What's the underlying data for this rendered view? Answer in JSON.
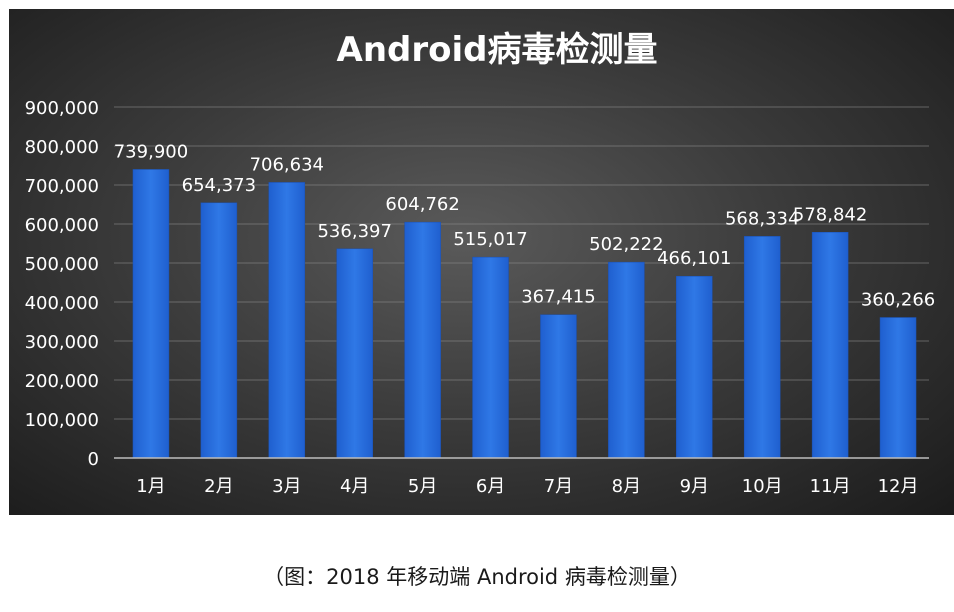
{
  "chart_data": {
    "type": "bar",
    "title": "Android病毒检测量",
    "categories": [
      "1月",
      "2月",
      "3月",
      "4月",
      "5月",
      "6月",
      "7月",
      "8月",
      "9月",
      "10月",
      "11月",
      "12月"
    ],
    "values": [
      739900,
      654373,
      706634,
      536397,
      604762,
      515017,
      367415,
      502222,
      466101,
      568334,
      578842,
      360266
    ],
    "data_labels": [
      "739,900",
      "654,373",
      "706,634",
      "536,397",
      "604,762",
      "515,017",
      "367,415",
      "502,222",
      "466,101",
      "568,334",
      "578,842",
      "360,266"
    ],
    "yticks": [
      "0",
      "100,000",
      "200,000",
      "300,000",
      "400,000",
      "500,000",
      "600,000",
      "700,000",
      "800,000",
      "900,000"
    ],
    "ylim": [
      0,
      900000
    ],
    "grid": true,
    "colors": {
      "bar": "#2a6fde",
      "bar_edge": "#1c52b3",
      "text": "#ffffff",
      "grid": "#8a8a8a"
    }
  },
  "caption": "（图：2018 年移动端 Android 病毒检测量）"
}
